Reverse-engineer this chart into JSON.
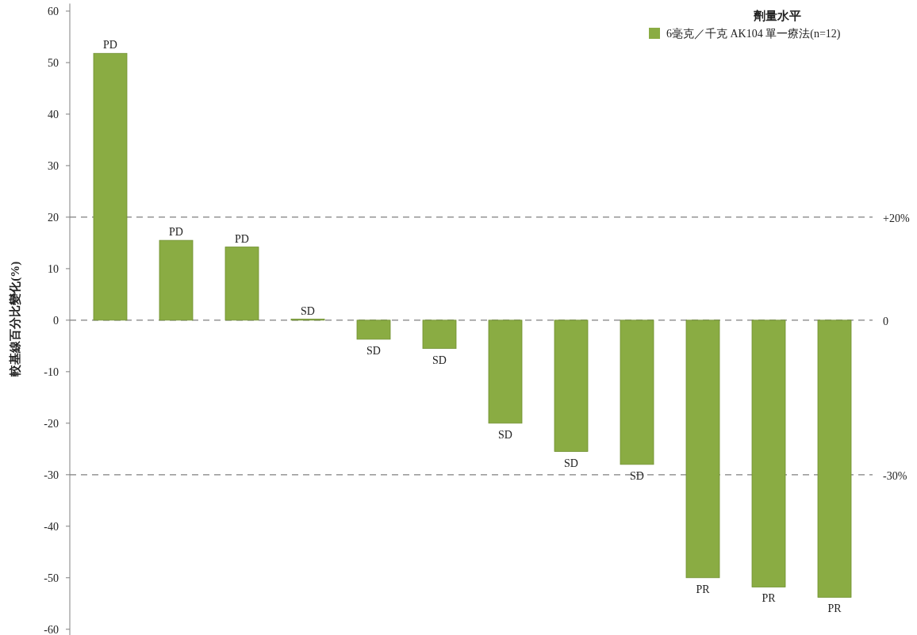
{
  "chart_data": {
    "type": "bar",
    "ylabel": "較基線百分比變化(%)",
    "legend_title": "劑量水平",
    "legend": "top right",
    "grid": false,
    "categories": [
      null,
      null,
      null,
      null,
      null,
      null,
      null,
      null,
      null,
      null,
      null,
      null
    ],
    "series": [
      {
        "name": "6毫克／千克 AK104 單一療法(n=12)",
        "color": "#8aac43",
        "values": [
          51.8,
          15.5,
          14.2,
          0.2,
          -3.7,
          -5.5,
          -20,
          -25.5,
          -28,
          -50,
          -51.8,
          -53.8
        ],
        "value_labels": [
          "PD",
          "PD",
          "PD",
          "SD",
          "SD",
          "SD",
          "SD",
          "SD",
          "SD",
          "PR",
          "PR",
          "PR"
        ]
      }
    ],
    "ylim": [
      -60.5,
      61
    ],
    "yticks": [
      -60,
      -50,
      -40,
      -30,
      -20,
      -10,
      0,
      10,
      20,
      30,
      40,
      50,
      60
    ],
    "ref_lines": [
      {
        "axis": "y",
        "value": 20,
        "label": "+20%",
        "color": "#808080",
        "line_style": "dashed"
      },
      {
        "axis": "y",
        "value": 0,
        "label": "0",
        "color": "#808080",
        "line_style": "dashed"
      },
      {
        "axis": "y",
        "value": -30,
        "label": "-30%",
        "color": "#808080",
        "line_style": "dashed"
      }
    ]
  }
}
